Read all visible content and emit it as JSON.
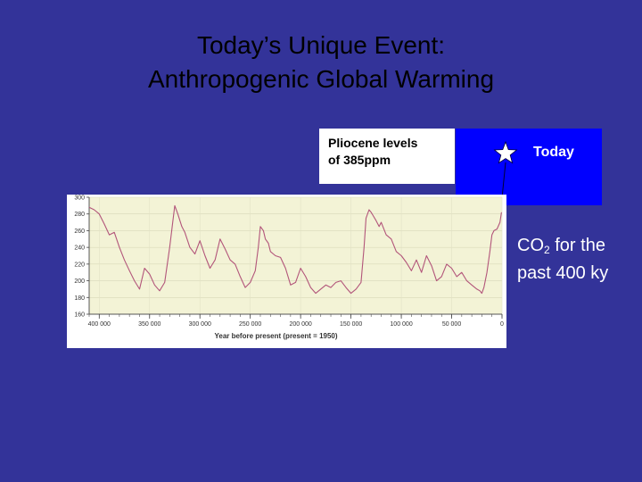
{
  "slide": {
    "title_line1": "Today’s Unique Event:",
    "title_line2": "Anthropogenic Global Warming",
    "pliocene_line1": "Pliocene levels",
    "pliocene_line2": "of 385ppm",
    "today_label": "Today",
    "co2_prefix": "CO",
    "co2_sub": "2",
    "co2_suffix": " for the",
    "co2_line2": "past 400 ky",
    "colors": {
      "background": "#333399",
      "box_blue": "#0000ff",
      "plot_bg": "#f3f3d6",
      "line": "#b2557a"
    },
    "star_icon": "star-icon"
  },
  "chart_data": {
    "type": "line",
    "title": "",
    "xlabel": "Year before present (present = 1950)",
    "ylabel": "",
    "xlim": [
      410000,
      0
    ],
    "ylim": [
      160,
      300
    ],
    "x_ticks": [
      400000,
      350000,
      300000,
      250000,
      200000,
      150000,
      100000,
      50000,
      0
    ],
    "x_tick_labels": [
      "400 000",
      "350 000",
      "300 000",
      "250 000",
      "200 000",
      "150 000",
      "100 000",
      "50 000",
      "0"
    ],
    "y_ticks": [
      160,
      180,
      200,
      220,
      240,
      260,
      280,
      300
    ],
    "y_tick_labels": [
      "160",
      "180",
      "200",
      "220",
      "240",
      "260",
      "280",
      "300"
    ],
    "grid": true,
    "series": [
      {
        "x": [
          410000,
          405000,
          400000,
          395000,
          390000,
          385000,
          380000,
          375000,
          370000,
          365000,
          360000,
          355000,
          350000,
          345000,
          340000,
          335000,
          330000,
          327000,
          325000,
          322000,
          318000,
          315000,
          310000,
          305000,
          300000,
          295000,
          290000,
          285000,
          280000,
          275000,
          270000,
          265000,
          260000,
          255000,
          250000,
          245000,
          242000,
          240000,
          237000,
          235000,
          232000,
          230000,
          225000,
          220000,
          215000,
          210000,
          205000,
          200000,
          195000,
          190000,
          185000,
          180000,
          175000,
          170000,
          165000,
          160000,
          155000,
          150000,
          145000,
          140000,
          137000,
          135000,
          132000,
          130000,
          128000,
          125000,
          122000,
          120000,
          115000,
          110000,
          105000,
          100000,
          95000,
          90000,
          85000,
          80000,
          75000,
          70000,
          65000,
          60000,
          55000,
          50000,
          45000,
          40000,
          35000,
          30000,
          25000,
          22000,
          20000,
          18000,
          15000,
          12000,
          10000,
          8000,
          5000,
          2000,
          500
        ],
        "y": [
          288,
          285,
          280,
          268,
          255,
          258,
          240,
          225,
          212,
          200,
          190,
          215,
          208,
          195,
          188,
          198,
          240,
          270,
          290,
          280,
          265,
          258,
          240,
          232,
          248,
          230,
          215,
          225,
          250,
          238,
          225,
          220,
          205,
          192,
          198,
          212,
          240,
          265,
          260,
          250,
          245,
          235,
          230,
          228,
          215,
          195,
          198,
          215,
          205,
          192,
          185,
          190,
          195,
          192,
          198,
          200,
          192,
          185,
          190,
          198,
          240,
          275,
          285,
          282,
          278,
          272,
          265,
          270,
          255,
          250,
          235,
          230,
          222,
          212,
          225,
          210,
          230,
          218,
          200,
          205,
          220,
          215,
          205,
          210,
          200,
          195,
          190,
          188,
          185,
          192,
          210,
          235,
          255,
          260,
          262,
          270,
          282
        ]
      }
    ]
  }
}
